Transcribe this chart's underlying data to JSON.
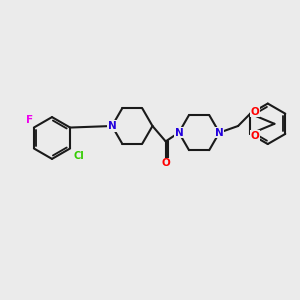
{
  "background_color": "#ebebeb",
  "bond_color": "#1a1a1a",
  "atom_colors": {
    "N": "#2200dd",
    "O": "#ff0000",
    "F": "#ee00ee",
    "Cl": "#33cc00",
    "C": "#1a1a1a"
  },
  "bond_width": 1.5,
  "font_size": 7.5
}
